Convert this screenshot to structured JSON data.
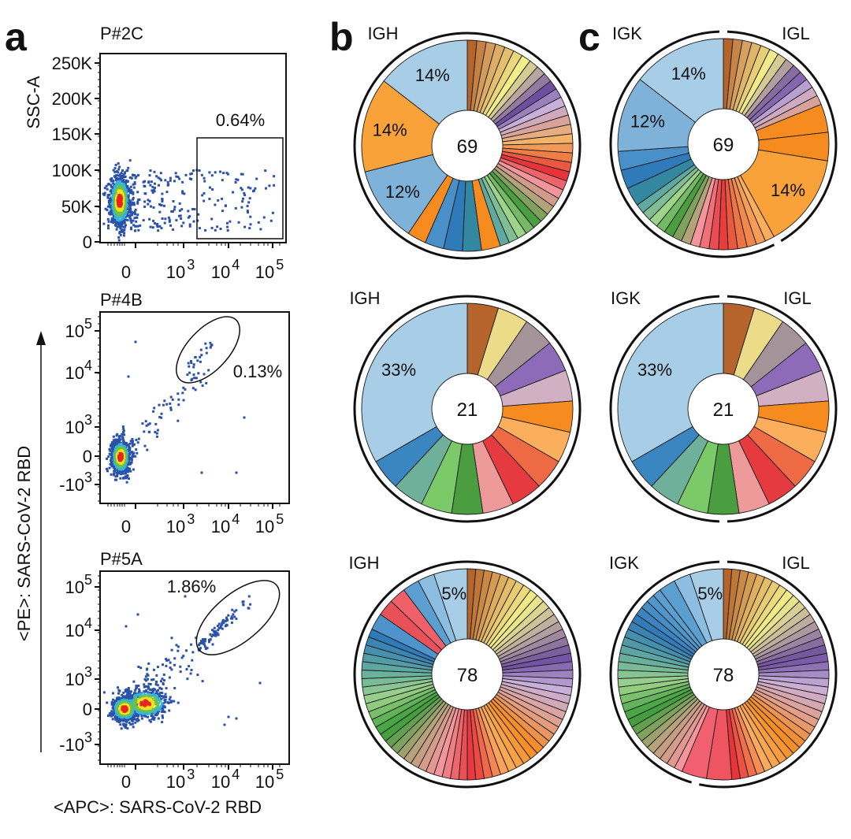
{
  "panel_labels": {
    "a": "a",
    "b": "b",
    "c": "c"
  },
  "flow_axes": {
    "y_title": "<PE>: SARS-CoV-2 RBD",
    "x_title": "<APC>: SARS-CoV-2 RBD"
  },
  "chart_data": [
    {
      "type": "scatter",
      "title": "P#2C",
      "ylabel": "SSC-A",
      "xlabel": "",
      "x_scale": "biexponential",
      "y_scale": "linear",
      "x_ticks": [
        {
          "b": "0",
          "e": ""
        },
        {
          "b": "10",
          "e": "3"
        },
        {
          "b": "10",
          "e": "4"
        },
        {
          "b": "10",
          "e": "5"
        }
      ],
      "y_ticks": [
        {
          "b": "250K",
          "e": ""
        },
        {
          "b": "200K",
          "e": ""
        },
        {
          "b": "150K",
          "e": ""
        },
        {
          "b": "100K",
          "e": ""
        },
        {
          "b": "50K",
          "e": ""
        },
        {
          "b": "0",
          "e": ""
        }
      ],
      "ylim": [
        0,
        250000
      ],
      "gate": {
        "shape": "rectangle",
        "label": "0.64%"
      },
      "point_colors": [
        "#e8251f",
        "#f3e21a",
        "#6cc24a",
        "#35b5d8",
        "#2b52a8"
      ]
    },
    {
      "type": "scatter",
      "title": "P#4B",
      "x_scale": "biexponential",
      "y_scale": "biexponential",
      "x_ticks": [
        {
          "b": "0",
          "e": ""
        },
        {
          "b": "10",
          "e": "3"
        },
        {
          "b": "10",
          "e": "4"
        },
        {
          "b": "10",
          "e": "5"
        }
      ],
      "y_ticks": [
        {
          "b": "10",
          "e": "5"
        },
        {
          "b": "10",
          "e": "4"
        },
        {
          "b": "10",
          "e": "3"
        },
        {
          "b": "0",
          "e": ""
        },
        {
          "b": "-10",
          "e": "3"
        }
      ],
      "gate": {
        "shape": "ellipse",
        "label": "0.13%"
      }
    },
    {
      "type": "scatter",
      "title": "P#5A",
      "x_scale": "biexponential",
      "y_scale": "biexponential",
      "x_ticks": [
        {
          "b": "0",
          "e": ""
        },
        {
          "b": "10",
          "e": "3"
        },
        {
          "b": "10",
          "e": "4"
        },
        {
          "b": "10",
          "e": "5"
        }
      ],
      "y_ticks": [
        {
          "b": "10",
          "e": "5"
        },
        {
          "b": "10",
          "e": "4"
        },
        {
          "b": "10",
          "e": "3"
        },
        {
          "b": "0",
          "e": ""
        },
        {
          "b": "-10",
          "e": "3"
        }
      ],
      "gate": {
        "shape": "ellipse",
        "label": "1.86%"
      }
    },
    {
      "type": "pie",
      "panel": "b",
      "chains": [
        "IGH"
      ],
      "center_label": "69",
      "segments": [
        {
          "run": 31,
          "colors": [
            "#b5652b",
            "#d49a5b",
            "#e3bf6e",
            "#f3ef8a",
            "#b9a6a0",
            "#6f4ea0",
            "#c7b1db",
            "#d9a39a",
            "#f3b46a",
            "#ee7d46",
            "#e8333a",
            "#f3959a",
            "#b3a37a",
            "#4a9e3f",
            "#9ed38a",
            "#5fa9a0"
          ]
        },
        {
          "v": 2,
          "c": "#f68b1f"
        },
        {
          "v": 2,
          "c": "#3487a0"
        },
        {
          "v": 2,
          "c": "#2f7ab8"
        },
        {
          "v": 2,
          "c": "#4a90c8"
        },
        {
          "v": 2,
          "c": "#f68b1f"
        },
        {
          "v": 8,
          "c": "#7fb2d8",
          "label": "12%"
        },
        {
          "v": 10,
          "c": "#f9a23a",
          "label": "14%"
        },
        {
          "v": 10,
          "c": "#a8cde6",
          "label": "14%"
        }
      ]
    },
    {
      "type": "pie",
      "panel": "c",
      "chains": [
        "IGK",
        "IGL"
      ],
      "center_label": "69",
      "igl_fraction": 0.42,
      "segments": [
        {
          "run": 13,
          "colors": [
            "#b5652b",
            "#d49a5b",
            "#e3bf6e",
            "#f3ef8a",
            "#b9a6a0",
            "#6f4ea0",
            "#c7b1db",
            "#d9a39a"
          ]
        },
        {
          "v": 3,
          "c": "#f68b1f"
        },
        {
          "v": 3,
          "c": "#f68b1f"
        },
        {
          "v": 10,
          "c": "#f9a23a",
          "label": "14%"
        },
        {
          "run": 9,
          "colors": [
            "#fbae5c",
            "#ee7d46",
            "#e8333a",
            "#f3959a"
          ]
        },
        {
          "run": 7,
          "colors": [
            "#b3a37a",
            "#4a9e3f",
            "#9ed38a",
            "#5fa9a0"
          ]
        },
        {
          "v": 2,
          "c": "#3487a0"
        },
        {
          "v": 2,
          "c": "#2f7ab8"
        },
        {
          "v": 2,
          "c": "#4a90c8"
        },
        {
          "v": 8,
          "c": "#7fb2d8",
          "label": "12%"
        },
        {
          "v": 10,
          "c": "#a8cde6",
          "label": "14%"
        }
      ]
    },
    {
      "type": "pie",
      "panel": "b",
      "chains": [
        "IGH"
      ],
      "center_label": "21",
      "segments": [
        {
          "v": 1,
          "c": "#b5652b"
        },
        {
          "v": 1,
          "c": "#ecdc8a"
        },
        {
          "v": 1,
          "c": "#a5939a"
        },
        {
          "v": 1,
          "c": "#8e6bb8"
        },
        {
          "v": 1,
          "c": "#d2b0c4"
        },
        {
          "v": 1,
          "c": "#f68b1f"
        },
        {
          "v": 1,
          "c": "#fbae5c"
        },
        {
          "v": 1,
          "c": "#ee6a45"
        },
        {
          "v": 1,
          "c": "#e53a40"
        },
        {
          "v": 1,
          "c": "#ef9a9a"
        },
        {
          "v": 1,
          "c": "#4b9e3f"
        },
        {
          "v": 1,
          "c": "#7cc96a"
        },
        {
          "v": 1,
          "c": "#6fb09a"
        },
        {
          "v": 1,
          "c": "#3a86c0"
        },
        {
          "v": 7,
          "c": "#a8cde6",
          "label": "33%"
        }
      ]
    },
    {
      "type": "pie",
      "panel": "c",
      "chains": [
        "IGK",
        "IGL"
      ],
      "center_label": "21",
      "igl_fraction": 0.5,
      "segments": [
        {
          "v": 1,
          "c": "#b5652b"
        },
        {
          "v": 1,
          "c": "#ecdc8a"
        },
        {
          "v": 1,
          "c": "#a5939a"
        },
        {
          "v": 1,
          "c": "#8e6bb8"
        },
        {
          "v": 1,
          "c": "#d2b0c4"
        },
        {
          "v": 1,
          "c": "#f68b1f"
        },
        {
          "v": 1,
          "c": "#fbae5c"
        },
        {
          "v": 1,
          "c": "#ee6a45"
        },
        {
          "v": 1,
          "c": "#e53a40"
        },
        {
          "v": 1,
          "c": "#ef9a9a"
        },
        {
          "v": 1,
          "c": "#4b9e3f"
        },
        {
          "v": 1,
          "c": "#7cc96a"
        },
        {
          "v": 1,
          "c": "#6fb09a"
        },
        {
          "v": 1,
          "c": "#3a86c0"
        },
        {
          "v": 7,
          "c": "#a8cde6",
          "label": "33%"
        }
      ]
    },
    {
      "type": "pie",
      "panel": "b",
      "chains": [
        "IGH"
      ],
      "center_label": "78",
      "segments": [
        {
          "run": 64,
          "colors": [
            "#b5652b",
            "#e0b060",
            "#f3ef8a",
            "#b9a6a0",
            "#6f4ea0",
            "#c7b1db",
            "#e0a090",
            "#f68b1f",
            "#fbae5c",
            "#e8333a",
            "#f3959a",
            "#b3a37a",
            "#3a9e3a",
            "#9ed38a",
            "#5fa9a0",
            "#2f7ab8"
          ]
        },
        {
          "v": 2,
          "c": "#4f93cc"
        },
        {
          "v": 2,
          "c": "#e8505a"
        },
        {
          "v": 2,
          "c": "#f0606a"
        },
        {
          "v": 2,
          "c": "#5b9fd0"
        },
        {
          "v": 2,
          "c": "#8dbde0"
        },
        {
          "v": 4,
          "c": "#a8cde6",
          "label": "5%"
        }
      ]
    },
    {
      "type": "pie",
      "panel": "c",
      "chains": [
        "IGK",
        "IGL"
      ],
      "center_label": "78",
      "igl_fraction": 0.54,
      "segments": [
        {
          "run": 38,
          "colors": [
            "#b5652b",
            "#e0b060",
            "#f3ef8a",
            "#b9a6a0",
            "#6f4ea0",
            "#c7b1db",
            "#e0a090",
            "#f68b1f",
            "#fbae5c",
            "#e8333a"
          ]
        },
        {
          "v": 3,
          "c": "#ee5560"
        },
        {
          "v": 3,
          "c": "#f06070"
        },
        {
          "run": 26,
          "colors": [
            "#f3959a",
            "#b3a37a",
            "#3a9e3a",
            "#9ed38a",
            "#5fa9a0",
            "#2f7ab8",
            "#5b9fd0"
          ]
        },
        {
          "v": 2,
          "c": "#5b9fd0"
        },
        {
          "v": 2,
          "c": "#8dbde0"
        },
        {
          "v": 4,
          "c": "#a8cde6",
          "label": "5%"
        }
      ]
    }
  ]
}
